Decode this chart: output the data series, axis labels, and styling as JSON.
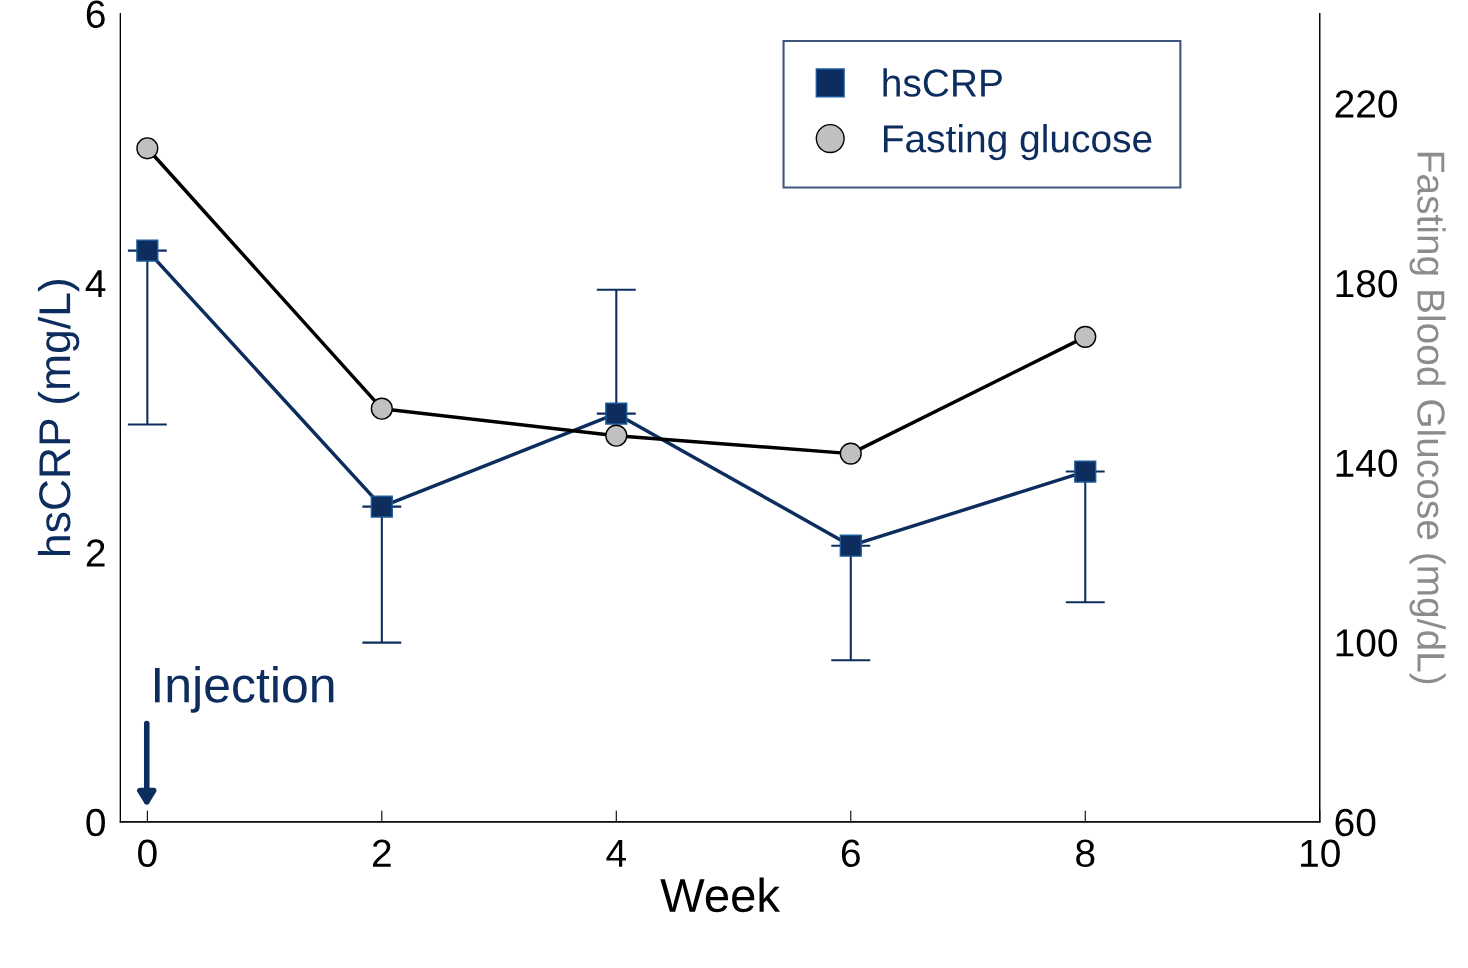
{
  "chart_data": {
    "type": "line",
    "xlabel": "Week",
    "ylabel": "hsCRP (mg/L)",
    "y2label": "Fasting Blood Glucose (mg/dL)",
    "x": [
      0,
      2,
      4,
      6,
      8
    ],
    "series": [
      {
        "name": "hsCRP",
        "color": "#0d2d5e",
        "marker": "square",
        "values": [
          4.24,
          2.34,
          3.03,
          2.05,
          2.6
        ],
        "errors": [
          [
            2.95,
            4.24
          ],
          [
            1.33,
            2.34
          ],
          [
            3.03,
            3.95
          ],
          [
            1.2,
            2.05
          ],
          [
            1.63,
            2.6
          ]
        ]
      },
      {
        "name": "Fasting glucose",
        "color": "#c0c0c0",
        "marker": "circle",
        "axis": "y2",
        "values": [
          210,
          152,
          146,
          142,
          168
        ]
      }
    ],
    "xlim": [
      -0.23,
      10
    ],
    "xticks": [
      0,
      2,
      4,
      6,
      8,
      10
    ],
    "ylim": [
      0,
      6
    ],
    "yticks": [
      0,
      2,
      4,
      6
    ],
    "y2lim": [
      60,
      240
    ],
    "y2ticks": [
      60,
      100,
      140,
      180,
      220
    ],
    "annotations": [
      "Injection"
    ],
    "legend": "top right",
    "grid": false
  }
}
